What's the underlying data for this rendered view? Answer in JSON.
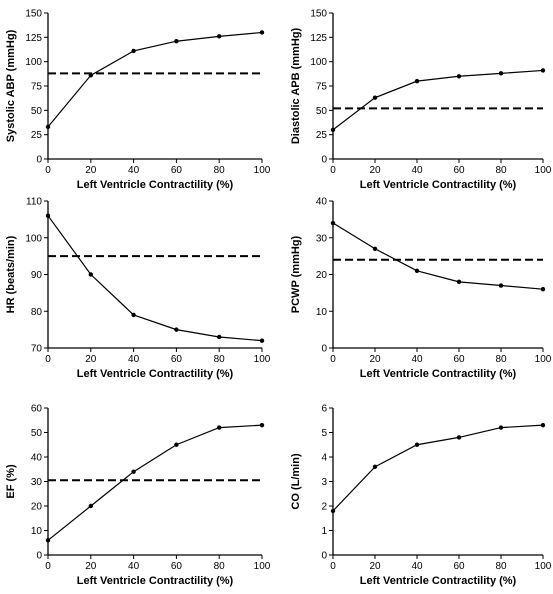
{
  "chart_data": [
    {
      "type": "line",
      "xlabel": "Left Ventricle Contractility (%)",
      "ylabel": "Systolic ABP (mmHg)",
      "x": [
        0,
        20,
        40,
        60,
        80,
        100
      ],
      "xticks": [
        0,
        20,
        40,
        60,
        80,
        100
      ],
      "xlim": [
        0,
        100
      ],
      "ylim": [
        0,
        150
      ],
      "yticks": [
        0,
        25,
        50,
        75,
        100,
        125,
        150
      ],
      "series": [
        {
          "values": [
            33,
            86,
            111,
            121,
            126,
            130
          ]
        }
      ],
      "reference_line": 88,
      "grid": false,
      "legend": "none"
    },
    {
      "type": "line",
      "xlabel": "Left Ventricle Contractility (%)",
      "ylabel": "Diastolic APB (mmHg)",
      "x": [
        0,
        20,
        40,
        60,
        80,
        100
      ],
      "xticks": [
        0,
        20,
        40,
        60,
        80,
        100
      ],
      "xlim": [
        0,
        100
      ],
      "ylim": [
        0,
        150
      ],
      "yticks": [
        0,
        25,
        50,
        75,
        100,
        125,
        150
      ],
      "series": [
        {
          "values": [
            30,
            63,
            80,
            85,
            88,
            91
          ]
        }
      ],
      "reference_line": 52,
      "grid": false,
      "legend": "none"
    },
    {
      "type": "line",
      "xlabel": "Left Ventricle Contractility (%)",
      "ylabel": "HR (beats/min)",
      "x": [
        0,
        20,
        40,
        60,
        80,
        100
      ],
      "xticks": [
        0,
        20,
        40,
        60,
        80,
        100
      ],
      "xlim": [
        0,
        100
      ],
      "ylim": [
        70,
        110
      ],
      "yticks": [
        70,
        80,
        90,
        100,
        110
      ],
      "series": [
        {
          "values": [
            106,
            90,
            79,
            75,
            73,
            72
          ]
        }
      ],
      "reference_line": 95,
      "grid": false,
      "legend": "none"
    },
    {
      "type": "line",
      "xlabel": "Left Ventricle Contractility (%)",
      "ylabel": "PCWP (mmHg)",
      "x": [
        0,
        20,
        40,
        60,
        80,
        100
      ],
      "xticks": [
        0,
        20,
        40,
        60,
        80,
        100
      ],
      "xlim": [
        0,
        100
      ],
      "ylim": [
        0,
        40
      ],
      "yticks": [
        0,
        10,
        20,
        30,
        40
      ],
      "series": [
        {
          "values": [
            34,
            27,
            21,
            18,
            17,
            16
          ]
        }
      ],
      "reference_line": 24,
      "grid": false,
      "legend": "none"
    },
    {
      "type": "line",
      "xlabel": "Left Ventricle Contractility (%)",
      "ylabel": "EF (%)",
      "x": [
        0,
        20,
        40,
        60,
        80,
        100
      ],
      "xticks": [
        0,
        20,
        40,
        60,
        80,
        100
      ],
      "xlim": [
        0,
        100
      ],
      "ylim": [
        0,
        60
      ],
      "yticks": [
        0,
        10,
        20,
        30,
        40,
        50,
        60
      ],
      "series": [
        {
          "values": [
            6,
            20,
            34,
            45,
            52,
            53
          ]
        }
      ],
      "reference_line": 30.5,
      "grid": false,
      "legend": "none"
    },
    {
      "type": "line",
      "xlabel": "Left Ventricle Contractility (%)",
      "ylabel": "CO (L/min)",
      "x": [
        0,
        20,
        40,
        60,
        80,
        100
      ],
      "xticks": [
        0,
        20,
        40,
        60,
        80,
        100
      ],
      "xlim": [
        0,
        100
      ],
      "ylim": [
        0,
        6
      ],
      "yticks": [
        0,
        1,
        2,
        3,
        4,
        5,
        6
      ],
      "series": [
        {
          "values": [
            1.8,
            3.6,
            4.5,
            4.8,
            5.2,
            5.3
          ]
        }
      ],
      "reference_line": null,
      "grid": false,
      "legend": "none"
    }
  ]
}
